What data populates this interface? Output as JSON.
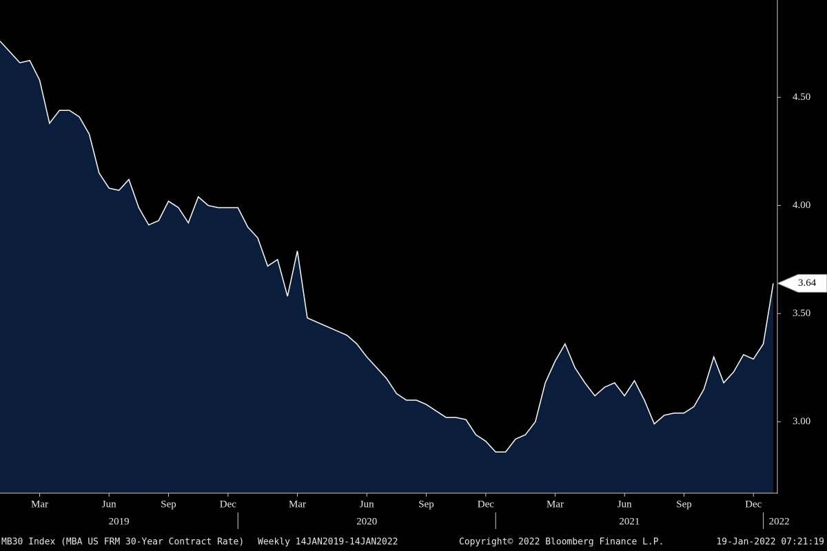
{
  "chart_data": {
    "type": "area",
    "color": "#0a1d3a",
    "line_color": "#ffffff",
    "categories": [
      null,
      null,
      null,
      null,
      "Mar",
      null,
      null,
      null,
      null,
      null,
      null,
      "Jun",
      null,
      null,
      null,
      null,
      null,
      "Sep",
      null,
      null,
      null,
      null,
      null,
      "Dec",
      null,
      null,
      null,
      null,
      null,
      null,
      "Mar",
      null,
      null,
      null,
      null,
      null,
      null,
      "Jun",
      null,
      null,
      null,
      null,
      null,
      "Sep",
      null,
      null,
      null,
      null,
      null,
      "Dec",
      null,
      null,
      null,
      null,
      null,
      null,
      "Mar",
      null,
      null,
      null,
      null,
      null,
      null,
      "Jun",
      null,
      null,
      null,
      null,
      null,
      "Sep",
      null,
      null,
      null,
      null,
      null,
      null,
      "Dec",
      null,
      null
    ],
    "values": [
      4.76,
      4.71,
      4.66,
      4.67,
      4.58,
      4.38,
      4.44,
      4.44,
      4.41,
      4.33,
      4.15,
      4.08,
      4.07,
      4.12,
      3.99,
      3.91,
      3.93,
      4.02,
      3.99,
      3.92,
      4.04,
      4.0,
      3.99,
      3.99,
      3.99,
      3.9,
      3.85,
      3.72,
      3.75,
      3.58,
      3.79,
      3.48,
      3.46,
      3.44,
      3.42,
      3.4,
      3.36,
      3.3,
      3.25,
      3.2,
      3.13,
      3.1,
      3.1,
      3.08,
      3.05,
      3.02,
      3.02,
      3.01,
      2.94,
      2.91,
      2.86,
      2.86,
      2.92,
      2.94,
      3.0,
      3.18,
      3.28,
      3.36,
      3.25,
      3.18,
      3.12,
      3.16,
      3.18,
      3.12,
      3.19,
      3.1,
      2.99,
      3.03,
      3.04,
      3.04,
      3.07,
      3.15,
      3.3,
      3.18,
      3.23,
      3.31,
      3.29,
      3.36,
      3.64
    ],
    "years": [
      "2019",
      "2020",
      "2021",
      "2022"
    ],
    "ylim": [
      2.67,
      4.95
    ],
    "yticks": [
      {
        "value": 3,
        "label": "3.00"
      },
      {
        "value": 3.5,
        "label": "3.50"
      },
      {
        "value": 4,
        "label": "4.00"
      },
      {
        "value": 4.5,
        "label": "4.50"
      }
    ]
  },
  "footer": {
    "security": "MB30 Index (MBA US FRM 30-Year Contract Rate)",
    "period": "Weekly 14JAN2019-14JAN2022",
    "copyright": "Copyright© 2022 Bloomberg Finance L.P.",
    "timestamp": "19-Jan-2022 07:21:19"
  }
}
